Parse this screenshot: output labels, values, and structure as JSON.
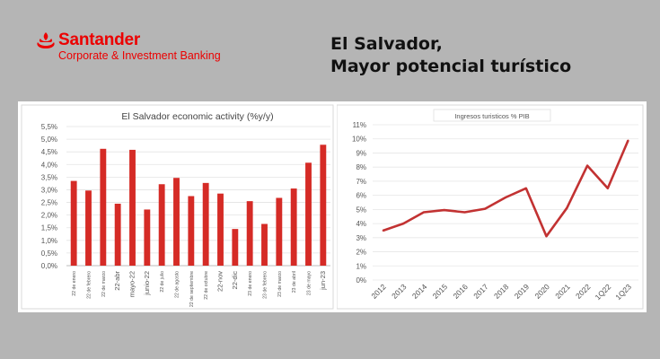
{
  "header": {
    "brand_name": "Santander",
    "brand_sub": "Corporate & Investment Banking",
    "title_line1": "El Salvador,",
    "title_line2": "Mayor potencial turístico"
  },
  "colors": {
    "brand": "#ec0000",
    "bar": "#d52b26",
    "line": "#c23232"
  },
  "chart_data": [
    {
      "type": "bar",
      "title": "El Salvador economic activity (%y/y)",
      "categories": [
        "22 de enero",
        "22 de febrero",
        "22 de marzo",
        "22-abr",
        "mayo-22",
        "junio-22",
        "22 de julio",
        "22 de agosto",
        "22 de septiembre",
        "22 de octubre",
        "22-nov",
        "22-dic",
        "23 de enero",
        "23 de febrero",
        "23 de marzo",
        "23 de abril",
        "23 de mayo",
        "jun-23"
      ],
      "values": [
        3.35,
        2.97,
        4.62,
        2.45,
        4.58,
        2.22,
        3.22,
        3.47,
        2.75,
        3.27,
        2.85,
        1.45,
        2.55,
        1.65,
        2.68,
        3.05,
        4.07,
        4.78
      ],
      "yticks": [
        "0,0%",
        "0,5%",
        "1,0%",
        "1,5%",
        "2,0%",
        "2,5%",
        "3,0%",
        "3,5%",
        "4,0%",
        "4,5%",
        "5,0%",
        "5,5%"
      ],
      "ylim": [
        0,
        5.5
      ],
      "grid": true,
      "legend": "none"
    },
    {
      "type": "line",
      "title": "Ingresos turisticos % PIB",
      "categories": [
        "2012",
        "2013",
        "2014",
        "2015",
        "2016",
        "2017",
        "2018",
        "2019",
        "2020",
        "2021",
        "2022",
        "1Q22",
        "1Q23"
      ],
      "values": [
        3.5,
        4.0,
        4.8,
        4.95,
        4.8,
        5.05,
        5.85,
        6.5,
        3.1,
        5.1,
        8.1,
        6.5,
        9.9
      ],
      "yticks": [
        "0%",
        "1%",
        "2%",
        "3%",
        "4%",
        "5%",
        "6%",
        "7%",
        "8%",
        "9%",
        "10%",
        "11%"
      ],
      "ylim": [
        0,
        11
      ],
      "grid": true,
      "legend": "none"
    }
  ]
}
